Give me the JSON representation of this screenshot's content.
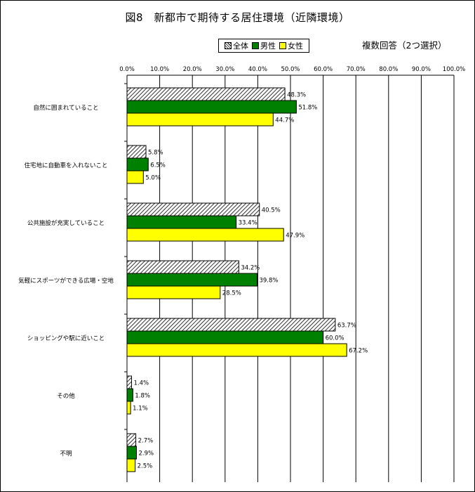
{
  "page": {
    "title": "図8　新都市で期待する居住環境（近隣環境）",
    "subtitle": "複数回答（2つ選択）"
  },
  "legend": {
    "items": [
      {
        "label": "全体",
        "pattern": "hatch",
        "color": "#ffffff"
      },
      {
        "label": "男性",
        "pattern": "solid",
        "color": "#008000"
      },
      {
        "label": "女性",
        "pattern": "solid",
        "color": "#ffff00"
      }
    ]
  },
  "chart_data": {
    "type": "bar",
    "orientation": "horizontal",
    "title": "図8　新都市で期待する居住環境（近隣環境）",
    "xlim": [
      0,
      100
    ],
    "x_ticks": [
      "0.0%",
      "10.0%",
      "20.0%",
      "30.0%",
      "40.0%",
      "50.0%",
      "60.0%",
      "70.0%",
      "80.0%",
      "90.0%",
      "100.0%"
    ],
    "tick_values": [
      0,
      10,
      20,
      30,
      40,
      50,
      60,
      70,
      80,
      90,
      100
    ],
    "grid": true,
    "legend_position": "top",
    "categories": [
      "自然に囲まれていること",
      "住宅地に自動車を入れないこと",
      "公共施設が充実していること",
      "気軽にスポーツができる広場・空地",
      "ショッピングや駅に近いこと",
      "その他",
      "不明"
    ],
    "series": [
      {
        "name": "全体",
        "color": "#ffffff",
        "pattern": "hatch",
        "values": [
          48.3,
          5.8,
          40.5,
          34.2,
          63.7,
          1.4,
          2.7
        ],
        "labels": [
          "48.3%",
          "5.8%",
          "40.5%",
          "34.2%",
          "63.7%",
          "1.4%",
          "2.7%"
        ]
      },
      {
        "name": "男性",
        "color": "#008000",
        "pattern": "solid",
        "values": [
          51.8,
          6.5,
          33.4,
          39.8,
          60.0,
          1.8,
          2.9
        ],
        "labels": [
          "51.8%",
          "6.5%",
          "33.4%",
          "39.8%",
          "60.0%",
          "1.8%",
          "2.9%"
        ]
      },
      {
        "name": "女性",
        "color": "#ffff00",
        "pattern": "solid",
        "values": [
          44.7,
          5.0,
          47.9,
          28.5,
          67.2,
          1.1,
          2.5
        ],
        "labels": [
          "44.7%",
          "5.0%",
          "47.9%",
          "28.5%",
          "67.2%",
          "1.1%",
          "2.5%"
        ]
      }
    ]
  }
}
